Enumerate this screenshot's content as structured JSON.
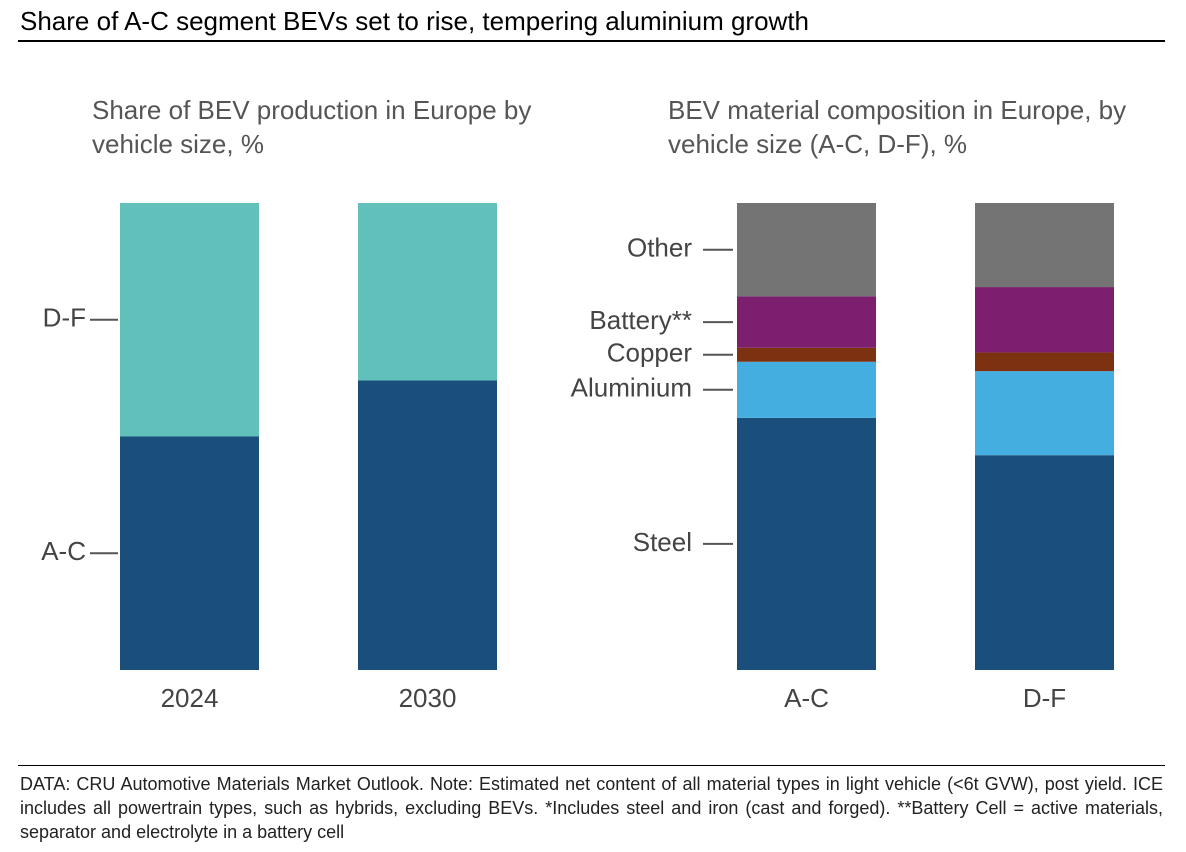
{
  "title": "Share of A-C segment BEVs set to rise, tempering aluminium growth",
  "footnote": "DATA: CRU Automotive Materials Market Outlook. Note: Estimated net content of all material types in light vehicle (<6t GVW), post yield. ICE includes all powertrain types, such as hybrids, excluding BEVs. *Includes steel and iron (cast and forged). **Battery Cell = active materials, separator and electrolyte in a battery cell",
  "chart_data": [
    {
      "type": "bar",
      "stacked": true,
      "title": "Share of BEV production in Europe by vehicle size, %",
      "categories": [
        "2024",
        "2030"
      ],
      "ylim": [
        0,
        100
      ],
      "series": [
        {
          "name": "A-C",
          "color": "#1a4f7c",
          "values": [
            50,
            62
          ]
        },
        {
          "name": "D-F",
          "color": "#62c0bb",
          "values": [
            50,
            38
          ]
        }
      ]
    },
    {
      "type": "bar",
      "stacked": true,
      "title": "BEV material composition in Europe, by vehicle size (A-C, D-F), %",
      "categories": [
        "A-C",
        "D-F"
      ],
      "ylim": [
        0,
        100
      ],
      "series": [
        {
          "name": "Steel",
          "color": "#1a4f7c",
          "values": [
            54,
            46
          ]
        },
        {
          "name": "Aluminium",
          "color": "#45aee0",
          "values": [
            12,
            18
          ]
        },
        {
          "name": "Copper",
          "color": "#7c3211",
          "values": [
            3,
            4
          ]
        },
        {
          "name": "Battery**",
          "color": "#7b1f6e",
          "values": [
            11,
            14
          ]
        },
        {
          "name": "Other",
          "color": "#747474",
          "values": [
            20,
            18
          ]
        }
      ]
    }
  ]
}
